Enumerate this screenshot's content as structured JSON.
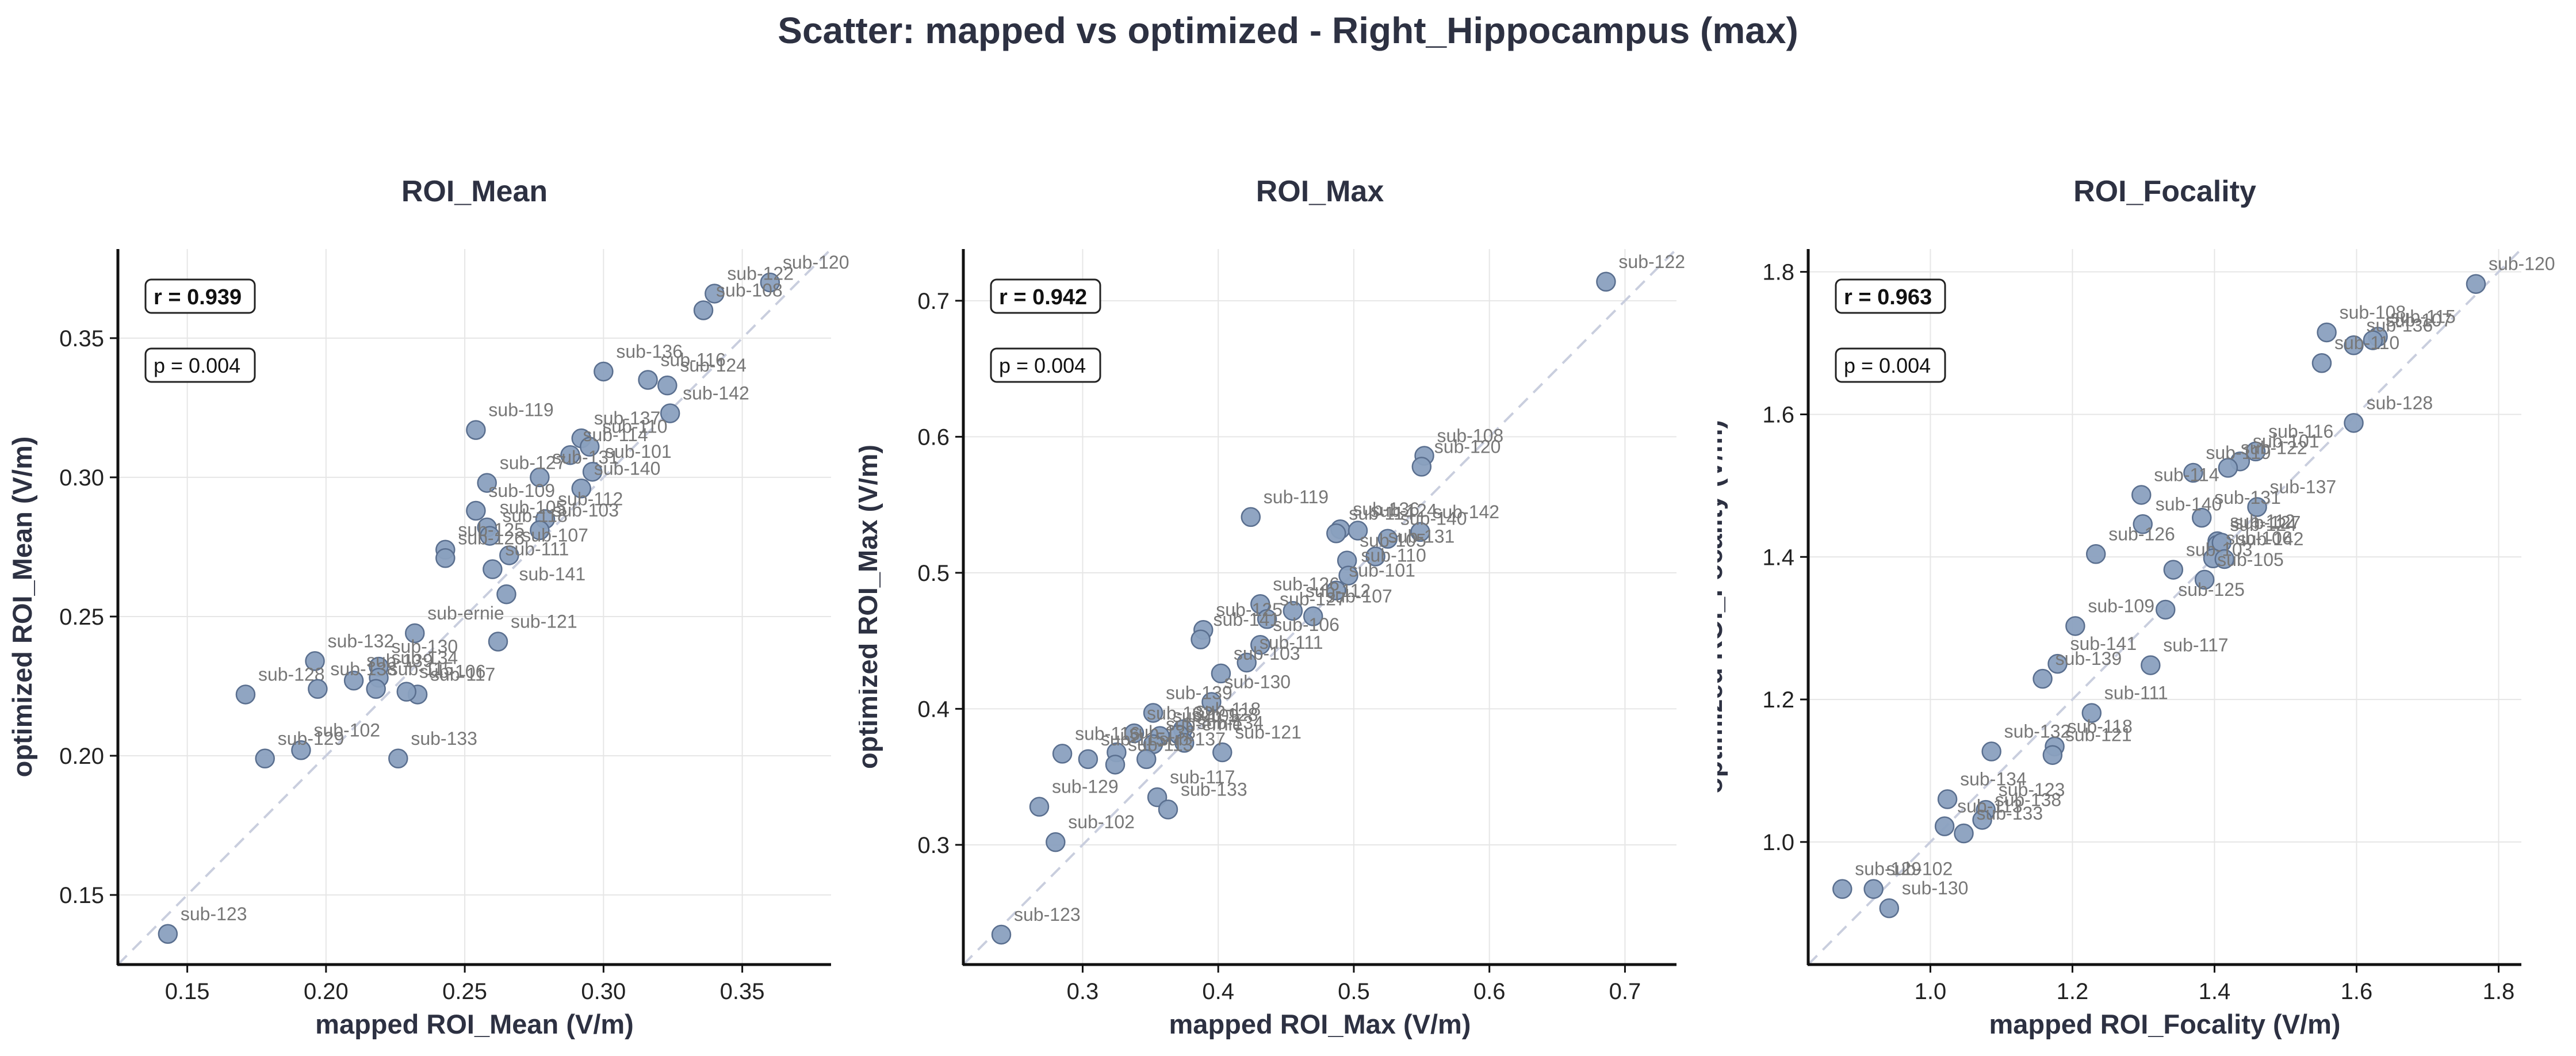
{
  "figure": {
    "title": "Scatter: mapped vs optimized - Right_Hippocampus (max)",
    "colors": {
      "point_fill": "#8aa0bf",
      "point_stroke": "#5a6f8f",
      "text": "#2d3142",
      "label": "#777777",
      "grid": "#e6e6e6",
      "identity": "#c9cede"
    }
  },
  "chart_data": [
    {
      "type": "scatter",
      "title": "ROI_Mean",
      "xlabel": "mapped ROI_Mean (V/m)",
      "ylabel": "optimized ROI_Mean (V/m)",
      "xlim": [
        0.125,
        0.382
      ],
      "ylim": [
        0.125,
        0.382
      ],
      "xticks": [
        "0.15",
        "0.20",
        "0.25",
        "0.30",
        "0.35"
      ],
      "yticks": [
        "0.15",
        "0.20",
        "0.25",
        "0.30",
        "0.35"
      ],
      "grid": true,
      "identity_line": true,
      "r": "r = 0.939",
      "p": "p = 0.004",
      "points": [
        {
          "label": "sub-120",
          "x": 0.36,
          "y": 0.37
        },
        {
          "label": "sub-122",
          "x": 0.34,
          "y": 0.366
        },
        {
          "label": "sub-108",
          "x": 0.336,
          "y": 0.36
        },
        {
          "label": "sub-136",
          "x": 0.3,
          "y": 0.338
        },
        {
          "label": "sub-116",
          "x": 0.316,
          "y": 0.335
        },
        {
          "label": "sub-124",
          "x": 0.323,
          "y": 0.333
        },
        {
          "label": "sub-142",
          "x": 0.324,
          "y": 0.323
        },
        {
          "label": "sub-119",
          "x": 0.254,
          "y": 0.317
        },
        {
          "label": "sub-137",
          "x": 0.292,
          "y": 0.314
        },
        {
          "label": "sub-110",
          "x": 0.295,
          "y": 0.311
        },
        {
          "label": "sub-114",
          "x": 0.288,
          "y": 0.308
        },
        {
          "label": "sub-131",
          "x": 0.277,
          "y": 0.3
        },
        {
          "label": "sub-101",
          "x": 0.296,
          "y": 0.302
        },
        {
          "label": "sub-140",
          "x": 0.292,
          "y": 0.296
        },
        {
          "label": "sub-127",
          "x": 0.258,
          "y": 0.298
        },
        {
          "label": "sub-109",
          "x": 0.254,
          "y": 0.288
        },
        {
          "label": "sub-112",
          "x": 0.279,
          "y": 0.285
        },
        {
          "label": "sub-105",
          "x": 0.258,
          "y": 0.282
        },
        {
          "label": "sub-103",
          "x": 0.277,
          "y": 0.281
        },
        {
          "label": "sub-118",
          "x": 0.259,
          "y": 0.279
        },
        {
          "label": "sub-125",
          "x": 0.243,
          "y": 0.274
        },
        {
          "label": "sub-126",
          "x": 0.243,
          "y": 0.271
        },
        {
          "label": "sub-107",
          "x": 0.266,
          "y": 0.272
        },
        {
          "label": "sub-111",
          "x": 0.26,
          "y": 0.267
        },
        {
          "label": "sub-141",
          "x": 0.265,
          "y": 0.258
        },
        {
          "label": "sub-ernie",
          "x": 0.232,
          "y": 0.244
        },
        {
          "label": "sub-121",
          "x": 0.262,
          "y": 0.241
        },
        {
          "label": "sub-132",
          "x": 0.196,
          "y": 0.234
        },
        {
          "label": "sub-130",
          "x": 0.219,
          "y": 0.232
        },
        {
          "label": "sub-134",
          "x": 0.219,
          "y": 0.228
        },
        {
          "label": "sub-139",
          "x": 0.21,
          "y": 0.227
        },
        {
          "label": "sub-128",
          "x": 0.171,
          "y": 0.222
        },
        {
          "label": "sub-138",
          "x": 0.197,
          "y": 0.224
        },
        {
          "label": "sub-115",
          "x": 0.218,
          "y": 0.224
        },
        {
          "label": "sub-117",
          "x": 0.233,
          "y": 0.222
        },
        {
          "label": "sub-106",
          "x": 0.229,
          "y": 0.223
        },
        {
          "label": "sub-102",
          "x": 0.191,
          "y": 0.202
        },
        {
          "label": "sub-129",
          "x": 0.178,
          "y": 0.199
        },
        {
          "label": "sub-133",
          "x": 0.226,
          "y": 0.199
        },
        {
          "label": "sub-123",
          "x": 0.143,
          "y": 0.136
        }
      ]
    },
    {
      "type": "scatter",
      "title": "ROI_Max",
      "xlabel": "mapped ROI_Max (V/m)",
      "ylabel": "optimized ROI_Max (V/m)",
      "xlim": [
        0.212,
        0.738
      ],
      "ylim": [
        0.212,
        0.738
      ],
      "xticks": [
        "0.3",
        "0.4",
        "0.5",
        "0.6",
        "0.7"
      ],
      "yticks": [
        "0.3",
        "0.4",
        "0.5",
        "0.6",
        "0.7"
      ],
      "grid": true,
      "identity_line": true,
      "r": "r = 0.942",
      "p": "p = 0.004",
      "points": [
        {
          "label": "sub-122",
          "x": 0.686,
          "y": 0.714
        },
        {
          "label": "sub-108",
          "x": 0.552,
          "y": 0.586
        },
        {
          "label": "sub-120",
          "x": 0.55,
          "y": 0.578
        },
        {
          "label": "sub-119",
          "x": 0.424,
          "y": 0.541
        },
        {
          "label": "sub-142",
          "x": 0.549,
          "y": 0.53
        },
        {
          "label": "sub-136",
          "x": 0.49,
          "y": 0.532
        },
        {
          "label": "sub-114",
          "x": 0.487,
          "y": 0.529
        },
        {
          "label": "sub-124",
          "x": 0.503,
          "y": 0.531
        },
        {
          "label": "sub-140",
          "x": 0.525,
          "y": 0.525
        },
        {
          "label": "sub-131",
          "x": 0.516,
          "y": 0.512
        },
        {
          "label": "sub-105",
          "x": 0.495,
          "y": 0.509
        },
        {
          "label": "sub-110",
          "x": 0.496,
          "y": 0.498
        },
        {
          "label": "sub-101",
          "x": 0.487,
          "y": 0.487
        },
        {
          "label": "sub-126",
          "x": 0.431,
          "y": 0.477
        },
        {
          "label": "sub-112",
          "x": 0.455,
          "y": 0.472
        },
        {
          "label": "sub-107",
          "x": 0.47,
          "y": 0.468
        },
        {
          "label": "sub-127",
          "x": 0.436,
          "y": 0.466
        },
        {
          "label": "sub-125",
          "x": 0.389,
          "y": 0.458
        },
        {
          "label": "sub-141",
          "x": 0.387,
          "y": 0.451
        },
        {
          "label": "sub-106",
          "x": 0.431,
          "y": 0.447
        },
        {
          "label": "sub-111",
          "x": 0.421,
          "y": 0.434
        },
        {
          "label": "sub-103",
          "x": 0.402,
          "y": 0.426
        },
        {
          "label": "sub-130",
          "x": 0.395,
          "y": 0.405
        },
        {
          "label": "sub-139",
          "x": 0.352,
          "y": 0.397
        },
        {
          "label": "sub-118",
          "x": 0.374,
          "y": 0.385
        },
        {
          "label": "sub-132",
          "x": 0.338,
          "y": 0.382
        },
        {
          "label": "sub-128",
          "x": 0.371,
          "y": 0.381
        },
        {
          "label": "sub-109",
          "x": 0.357,
          "y": 0.38
        },
        {
          "label": "sub-134",
          "x": 0.375,
          "y": 0.375
        },
        {
          "label": "sub-ernie",
          "x": 0.352,
          "y": 0.374
        },
        {
          "label": "sub-121",
          "x": 0.403,
          "y": 0.368
        },
        {
          "label": "sub-138",
          "x": 0.325,
          "y": 0.368
        },
        {
          "label": "sub-116",
          "x": 0.285,
          "y": 0.367
        },
        {
          "label": "sub-115",
          "x": 0.304,
          "y": 0.363
        },
        {
          "label": "sub-137",
          "x": 0.347,
          "y": 0.363
        },
        {
          "label": "sub-113",
          "x": 0.324,
          "y": 0.359
        },
        {
          "label": "sub-129",
          "x": 0.268,
          "y": 0.328
        },
        {
          "label": "sub-117",
          "x": 0.355,
          "y": 0.335
        },
        {
          "label": "sub-133",
          "x": 0.363,
          "y": 0.326
        },
        {
          "label": "sub-102",
          "x": 0.28,
          "y": 0.302
        },
        {
          "label": "sub-123",
          "x": 0.24,
          "y": 0.234
        }
      ]
    },
    {
      "type": "scatter",
      "title": "ROI_Focality",
      "xlabel": "mapped ROI_Focality (V/m)",
      "ylabel": "optimized ROI_Focality (V/m)",
      "xlim": [
        0.828,
        1.832
      ],
      "ylim": [
        0.828,
        1.832
      ],
      "xticks": [
        "1.0",
        "1.2",
        "1.4",
        "1.6",
        "1.8"
      ],
      "yticks": [
        "1.0",
        "1.2",
        "1.4",
        "1.6",
        "1.8"
      ],
      "grid": true,
      "identity_line": true,
      "r": "r = 0.963",
      "p": "p = 0.004",
      "points": [
        {
          "label": "sub-120",
          "x": 1.768,
          "y": 1.783
        },
        {
          "label": "sub-108",
          "x": 1.558,
          "y": 1.715
        },
        {
          "label": "sub-115",
          "x": 1.63,
          "y": 1.709
        },
        {
          "label": "sub-107",
          "x": 1.623,
          "y": 1.704
        },
        {
          "label": "sub-136",
          "x": 1.596,
          "y": 1.697
        },
        {
          "label": "sub-110",
          "x": 1.551,
          "y": 1.672
        },
        {
          "label": "sub-128",
          "x": 1.596,
          "y": 1.588
        },
        {
          "label": "sub-116",
          "x": 1.458,
          "y": 1.548
        },
        {
          "label": "sub-101",
          "x": 1.436,
          "y": 1.534
        },
        {
          "label": "sub-122",
          "x": 1.419,
          "y": 1.525
        },
        {
          "label": "sub-119",
          "x": 1.37,
          "y": 1.518
        },
        {
          "label": "sub-114",
          "x": 1.297,
          "y": 1.487
        },
        {
          "label": "sub-137",
          "x": 1.46,
          "y": 1.47
        },
        {
          "label": "sub-131",
          "x": 1.382,
          "y": 1.455
        },
        {
          "label": "sub-140",
          "x": 1.299,
          "y": 1.446
        },
        {
          "label": "sub-112",
          "x": 1.404,
          "y": 1.422
        },
        {
          "label": "sub-124",
          "x": 1.404,
          "y": 1.417
        },
        {
          "label": "sub-127",
          "x": 1.41,
          "y": 1.42
        },
        {
          "label": "sub-106",
          "x": 1.398,
          "y": 1.398
        },
        {
          "label": "sub-142",
          "x": 1.414,
          "y": 1.397
        },
        {
          "label": "sub-126",
          "x": 1.233,
          "y": 1.404
        },
        {
          "label": "sub-103",
          "x": 1.342,
          "y": 1.382
        },
        {
          "label": "sub-105",
          "x": 1.386,
          "y": 1.368
        },
        {
          "label": "sub-125",
          "x": 1.331,
          "y": 1.326
        },
        {
          "label": "sub-109",
          "x": 1.204,
          "y": 1.303
        },
        {
          "label": "sub-117",
          "x": 1.31,
          "y": 1.248
        },
        {
          "label": "sub-141",
          "x": 1.179,
          "y": 1.25
        },
        {
          "label": "sub-139",
          "x": 1.158,
          "y": 1.229
        },
        {
          "label": "sub-111",
          "x": 1.227,
          "y": 1.181
        },
        {
          "label": "sub-118",
          "x": 1.175,
          "y": 1.134
        },
        {
          "label": "sub-132",
          "x": 1.086,
          "y": 1.127
        },
        {
          "label": "sub-121",
          "x": 1.172,
          "y": 1.122
        },
        {
          "label": "sub-134",
          "x": 1.024,
          "y": 1.06
        },
        {
          "label": "sub-123",
          "x": 1.078,
          "y": 1.045
        },
        {
          "label": "sub-138",
          "x": 1.073,
          "y": 1.031
        },
        {
          "label": "sub-113",
          "x": 1.02,
          "y": 1.022
        },
        {
          "label": "sub-133",
          "x": 1.047,
          "y": 1.012
        },
        {
          "label": "sub-129",
          "x": 0.876,
          "y": 0.934
        },
        {
          "label": "sub-102",
          "x": 0.92,
          "y": 0.934
        },
        {
          "label": "sub-130",
          "x": 0.942,
          "y": 0.907
        }
      ]
    }
  ]
}
